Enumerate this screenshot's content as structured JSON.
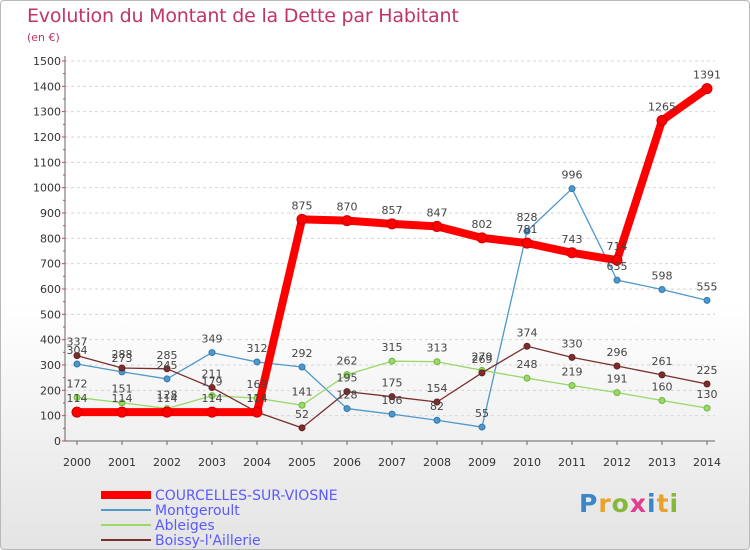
{
  "header": {
    "title": "Evolution du Montant de la Dette par Habitant",
    "unit": "(en €)"
  },
  "logo": {
    "text": "Proxiti",
    "letter_colors": [
      "#3a86c8",
      "#e9a32a",
      "#86b83a",
      "#e23e8b",
      "#3a86c8",
      "#e9a32a",
      "#86b83a"
    ]
  },
  "chart_data": {
    "type": "line",
    "title": "Evolution du Montant de la Dette par Habitant",
    "subtitle": "(en €)",
    "xlabel": "",
    "ylabel": "",
    "x": [
      "2000",
      "2001",
      "2002",
      "2003",
      "2004",
      "2005",
      "2006",
      "2007",
      "2008",
      "2009",
      "2010",
      "2011",
      "2012",
      "2013",
      "2014"
    ],
    "ylim": [
      0,
      1500
    ],
    "yticks": [
      "0",
      "100",
      "200",
      "300",
      "400",
      "500",
      "600",
      "700",
      "800",
      "900",
      "1000",
      "1100",
      "1200",
      "1300",
      "1400",
      "1500"
    ],
    "grid": "horizontal dashed",
    "legend_position": "bottom-left",
    "series": [
      {
        "name": "COURCELLES-SUR-VIOSNE",
        "color": "#ff0000",
        "marker": "#cc0000",
        "label_color": "#5a5aff",
        "emphasis": true,
        "values": [
          114,
          114,
          114,
          114,
          114,
          875,
          870,
          857,
          847,
          802,
          781,
          743,
          714,
          1265,
          1391
        ]
      },
      {
        "name": "Montgeroult",
        "color": "#4f98c9",
        "marker": "#2f78b0",
        "label_color": "#5a5aff",
        "emphasis": false,
        "values": [
          304,
          273,
          245,
          349,
          312,
          292,
          128,
          106,
          82,
          55,
          828,
          996,
          635,
          598,
          555
        ]
      },
      {
        "name": "Ableiges",
        "color": "#9ad86a",
        "marker": "#6cb83a",
        "label_color": "#5a5aff",
        "emphasis": false,
        "values": [
          172,
          151,
          128,
          179,
          169,
          141,
          262,
          315,
          313,
          279,
          248,
          219,
          191,
          160,
          130
        ]
      },
      {
        "name": "Boissy-l'Aillerie",
        "color": "#7a2f2f",
        "marker": "#6a1f1f",
        "label_color": "#5a5aff",
        "emphasis": false,
        "values": [
          337,
          288,
          285,
          211,
          114,
          52,
          195,
          175,
          154,
          269,
          374,
          330,
          296,
          261,
          225
        ]
      }
    ]
  }
}
